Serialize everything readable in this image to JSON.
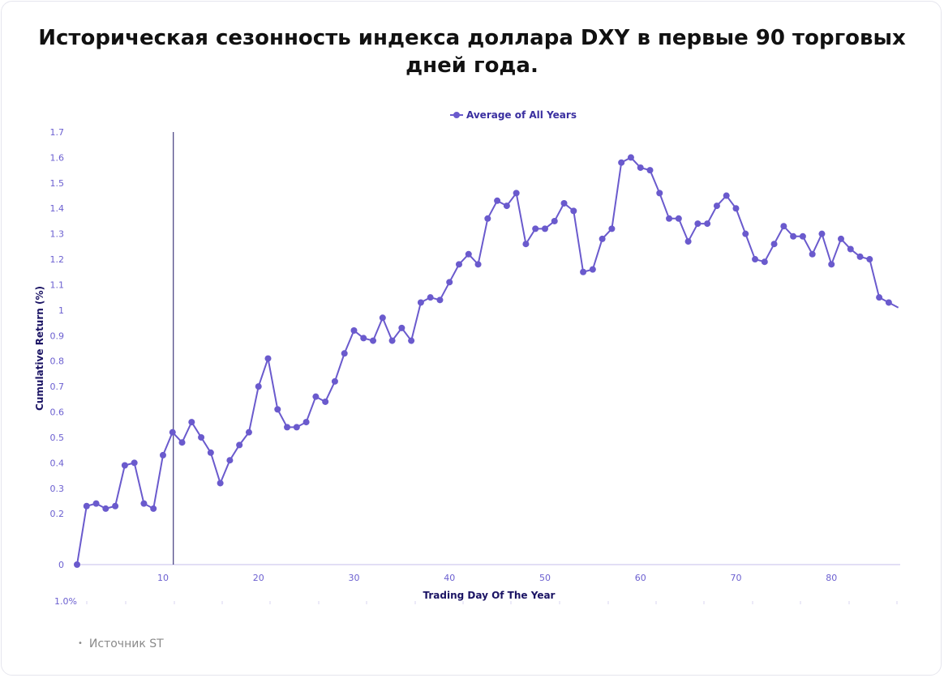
{
  "title": "Историческая сезонность индекса доллара DXY в первые 90 торговых дней года.",
  "source": "Источник ST",
  "colors": {
    "series": "#6a5acd",
    "axis": "#d8d4f2",
    "vline": "#1b1464",
    "tick": "#6b5fd0"
  },
  "chart_data": {
    "type": "line",
    "title": "",
    "xlabel": "Trading Day Of The Year",
    "ylabel": "Cumulative Return (%)",
    "legend": "top-center",
    "series": [
      {
        "name": "Average of All Years",
        "x": [
          1,
          2,
          3,
          4,
          5,
          6,
          7,
          8,
          9,
          10,
          11,
          12,
          13,
          14,
          15,
          16,
          17,
          18,
          19,
          20,
          21,
          22,
          23,
          24,
          25,
          26,
          27,
          28,
          29,
          30,
          31,
          32,
          33,
          34,
          35,
          36,
          37,
          38,
          39,
          40,
          41,
          42,
          43,
          44,
          45,
          46,
          47,
          48,
          49,
          50,
          51,
          52,
          53,
          54,
          55,
          56,
          57,
          58,
          59,
          60,
          61,
          62,
          63,
          64,
          65,
          66,
          67,
          68,
          69,
          70,
          71,
          72,
          73,
          74,
          75,
          76,
          77,
          78,
          79,
          80,
          81,
          82,
          83,
          84,
          85,
          86,
          87
        ],
        "values": [
          0,
          0.23,
          0.24,
          0.22,
          0.23,
          0.39,
          0.4,
          0.24,
          0.22,
          0.43,
          0.52,
          0.48,
          0.56,
          0.5,
          0.44,
          0.32,
          0.41,
          0.47,
          0.52,
          0.7,
          0.81,
          0.61,
          0.54,
          0.54,
          0.56,
          0.66,
          0.64,
          0.72,
          0.83,
          0.92,
          0.89,
          0.88,
          0.97,
          0.88,
          0.93,
          0.88,
          1.03,
          1.05,
          1.04,
          1.11,
          1.18,
          1.22,
          1.18,
          1.36,
          1.43,
          1.41,
          1.46,
          1.26,
          1.32,
          1.32,
          1.35,
          1.42,
          1.39,
          1.15,
          1.16,
          1.28,
          1.32,
          1.58,
          1.6,
          1.56,
          1.55,
          1.46,
          1.36,
          1.36,
          1.27,
          1.34,
          1.34,
          1.41,
          1.45,
          1.4,
          1.3,
          1.2,
          1.19,
          1.26,
          1.33,
          1.29,
          1.29,
          1.22,
          1.3,
          1.18,
          1.28,
          1.24,
          1.21,
          1.2,
          1.05,
          1.03,
          1.01
        ]
      }
    ],
    "x_ticks": [
      "10",
      "20",
      "30",
      "40",
      "50",
      "60",
      "70",
      "80"
    ],
    "x_tick_values": [
      10,
      20,
      30,
      40,
      50,
      60,
      70,
      80
    ],
    "y_ticks": [
      "0",
      "0.2",
      "0.3",
      "0.4",
      "0.5",
      "0.6",
      "0.7",
      "0.8",
      "0.9",
      "1",
      "1.1",
      "1.2",
      "1.3",
      "1.4",
      "1.5",
      "1.6",
      "1.7"
    ],
    "y_tick_values": [
      0,
      0.2,
      0.3,
      0.4,
      0.5,
      0.6,
      0.7,
      0.8,
      0.9,
      1,
      1.1,
      1.2,
      1.3,
      1.4,
      1.5,
      1.6,
      1.7
    ],
    "ylim": [
      0,
      1.7
    ],
    "xlim": [
      1,
      87
    ],
    "vertical_marker_x": 11,
    "extra_label": "1.0%"
  }
}
